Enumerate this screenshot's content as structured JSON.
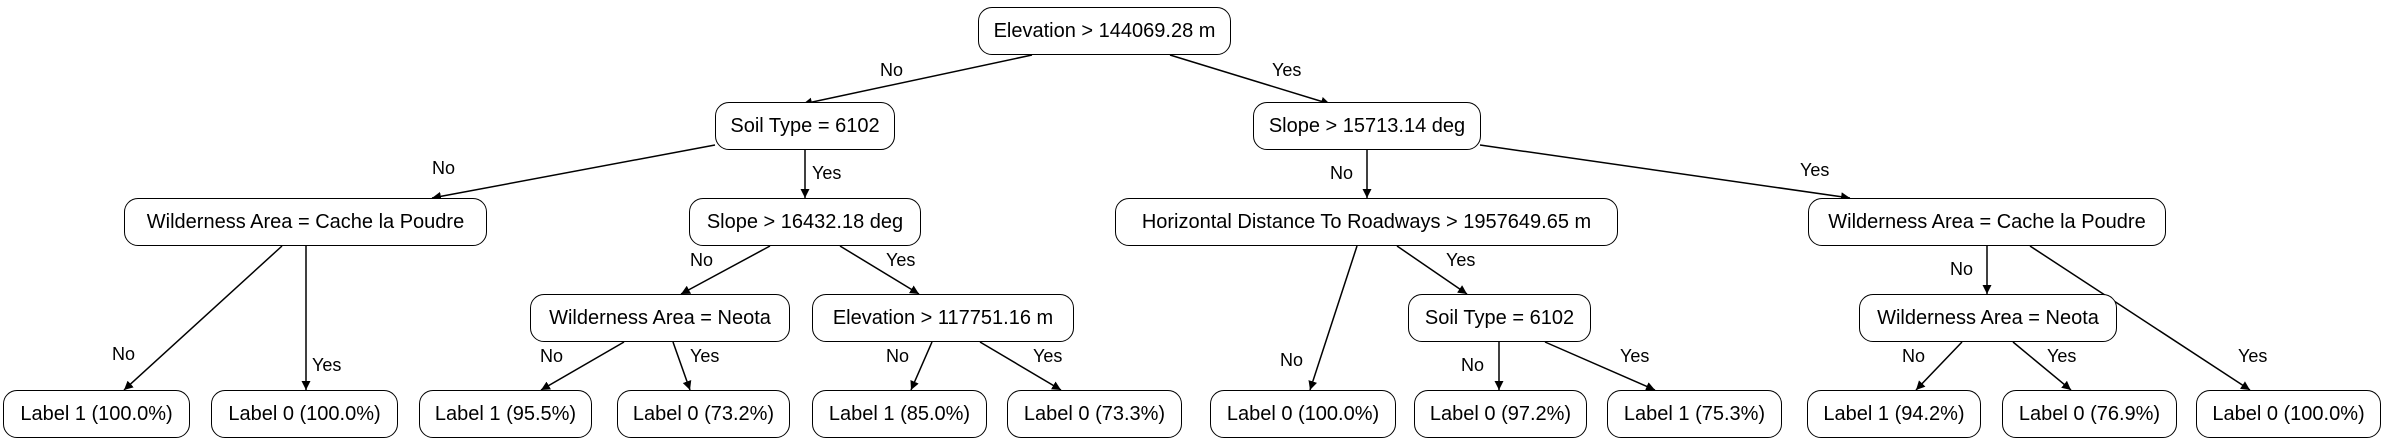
{
  "nodes": {
    "n0": "Elevation > 144069.28 m",
    "n1": "Soil Type = 6102",
    "n2": "Slope > 15713.14 deg",
    "n3": "Wilderness Area = Cache la Poudre",
    "n4": "Slope > 16432.18 deg",
    "n5": "Horizontal Distance To Roadways > 1957649.65 m",
    "n6": "Wilderness Area = Cache la Poudre",
    "n7": "Wilderness Area = Neota",
    "n8": "Elevation > 117751.16 m",
    "n9": "Soil Type = 6102",
    "n10": "Wilderness Area = Neota",
    "l1": "Label 1 (100.0%)",
    "l2": "Label 0 (100.0%)",
    "l3": "Label 1 (95.5%)",
    "l4": "Label 0 (73.2%)",
    "l5": "Label 1 (85.0%)",
    "l6": "Label 0 (73.3%)",
    "l7": "Label 0 (100.0%)",
    "l8": "Label 0 (97.2%)",
    "l9": "Label 1 (75.3%)",
    "l10": "Label 1 (94.2%)",
    "l11": "Label 0 (76.9%)",
    "l12": "Label 0 (100.0%)"
  },
  "edge_labels": {
    "no": "No",
    "yes": "Yes"
  }
}
